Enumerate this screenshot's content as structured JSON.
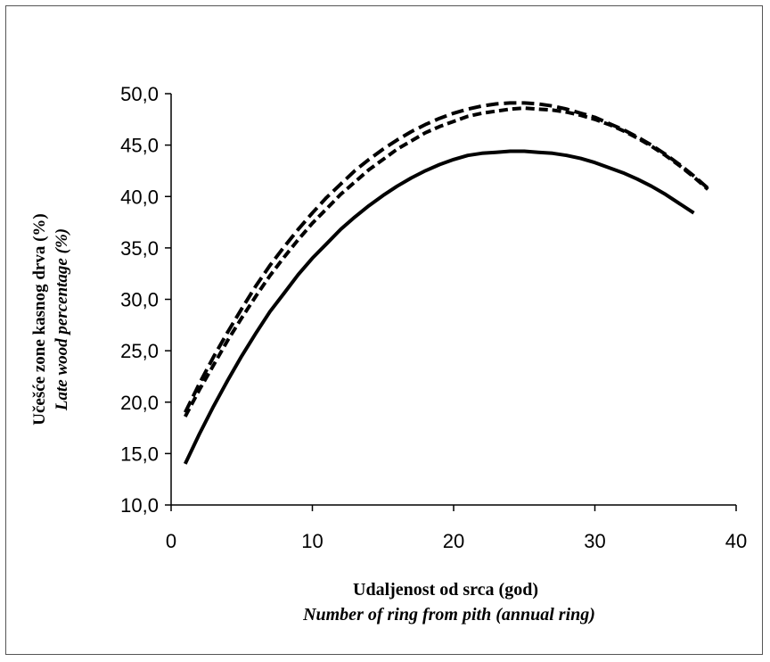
{
  "chart_data": {
    "type": "line",
    "xlabel": "Udaljenost od srca (god)",
    "xlabel_en": "Number of ring from pith (annual ring)",
    "ylabel": "Učešće zone kasnog drva (%)",
    "ylabel_en": "Late wood percentage (%)",
    "xlim": [
      0,
      40
    ],
    "ylim": [
      10,
      50
    ],
    "x_ticks": [
      "0",
      "10",
      "20",
      "30",
      "40"
    ],
    "y_ticks": [
      "10,0",
      "15,0",
      "20,0",
      "25,0",
      "30,0",
      "35,0",
      "40,0",
      "45,0",
      "50,0"
    ],
    "grid": false,
    "legend": "none",
    "series": [
      {
        "style": "solid",
        "x": [
          1,
          2,
          3,
          4,
          5,
          6,
          7,
          8,
          9,
          10,
          11,
          12,
          13,
          14,
          15,
          16,
          17,
          18,
          19,
          20,
          21,
          22,
          23,
          24,
          25,
          26,
          27,
          28,
          29,
          30,
          31,
          32,
          33,
          34,
          35,
          36,
          37
        ],
        "y": [
          14.0,
          16.9,
          19.6,
          22.1,
          24.5,
          26.7,
          28.8,
          30.6,
          32.4,
          34.0,
          35.4,
          36.8,
          38.0,
          39.1,
          40.1,
          41.0,
          41.8,
          42.5,
          43.1,
          43.6,
          44.0,
          44.2,
          44.3,
          44.4,
          44.4,
          44.3,
          44.2,
          44.0,
          43.7,
          43.3,
          42.8,
          42.3,
          41.7,
          41.0,
          40.2,
          39.3,
          38.4
        ]
      },
      {
        "style": "dashed",
        "x": [
          1,
          2,
          3,
          4,
          5,
          6,
          7,
          8,
          9,
          10,
          11,
          12,
          13,
          14,
          15,
          16,
          17,
          18,
          19,
          20,
          21,
          22,
          23,
          24,
          25,
          26,
          27,
          28,
          29,
          30,
          31,
          32,
          33,
          34,
          35,
          36,
          37,
          38
        ],
        "y": [
          19.0,
          21.8,
          24.4,
          26.8,
          29.1,
          31.3,
          33.3,
          35.1,
          36.8,
          38.4,
          39.9,
          41.2,
          42.5,
          43.6,
          44.6,
          45.5,
          46.3,
          47.0,
          47.6,
          48.1,
          48.5,
          48.8,
          49.0,
          49.1,
          49.1,
          49.0,
          48.8,
          48.5,
          48.1,
          47.7,
          47.1,
          46.5,
          45.8,
          45.0,
          44.1,
          43.1,
          42.0,
          40.8
        ]
      },
      {
        "style": "dashed",
        "x": [
          1,
          2,
          3,
          4,
          5,
          6,
          7,
          8,
          9,
          10,
          11,
          12,
          13,
          14,
          15,
          16,
          17,
          18,
          19,
          20,
          21,
          22,
          23,
          24,
          25,
          26,
          27,
          28,
          29,
          30,
          31,
          32,
          33,
          34,
          35,
          36,
          37,
          38
        ],
        "y": [
          18.6,
          21.2,
          23.6,
          26.0,
          28.2,
          30.3,
          32.3,
          34.1,
          35.8,
          37.4,
          38.8,
          40.2,
          41.4,
          42.6,
          43.6,
          44.6,
          45.4,
          46.2,
          46.8,
          47.3,
          47.8,
          48.1,
          48.3,
          48.5,
          48.6,
          48.5,
          48.4,
          48.2,
          47.9,
          47.5,
          47.0,
          46.4,
          45.7,
          44.9,
          44.0,
          43.0,
          41.9,
          40.7
        ]
      }
    ]
  }
}
